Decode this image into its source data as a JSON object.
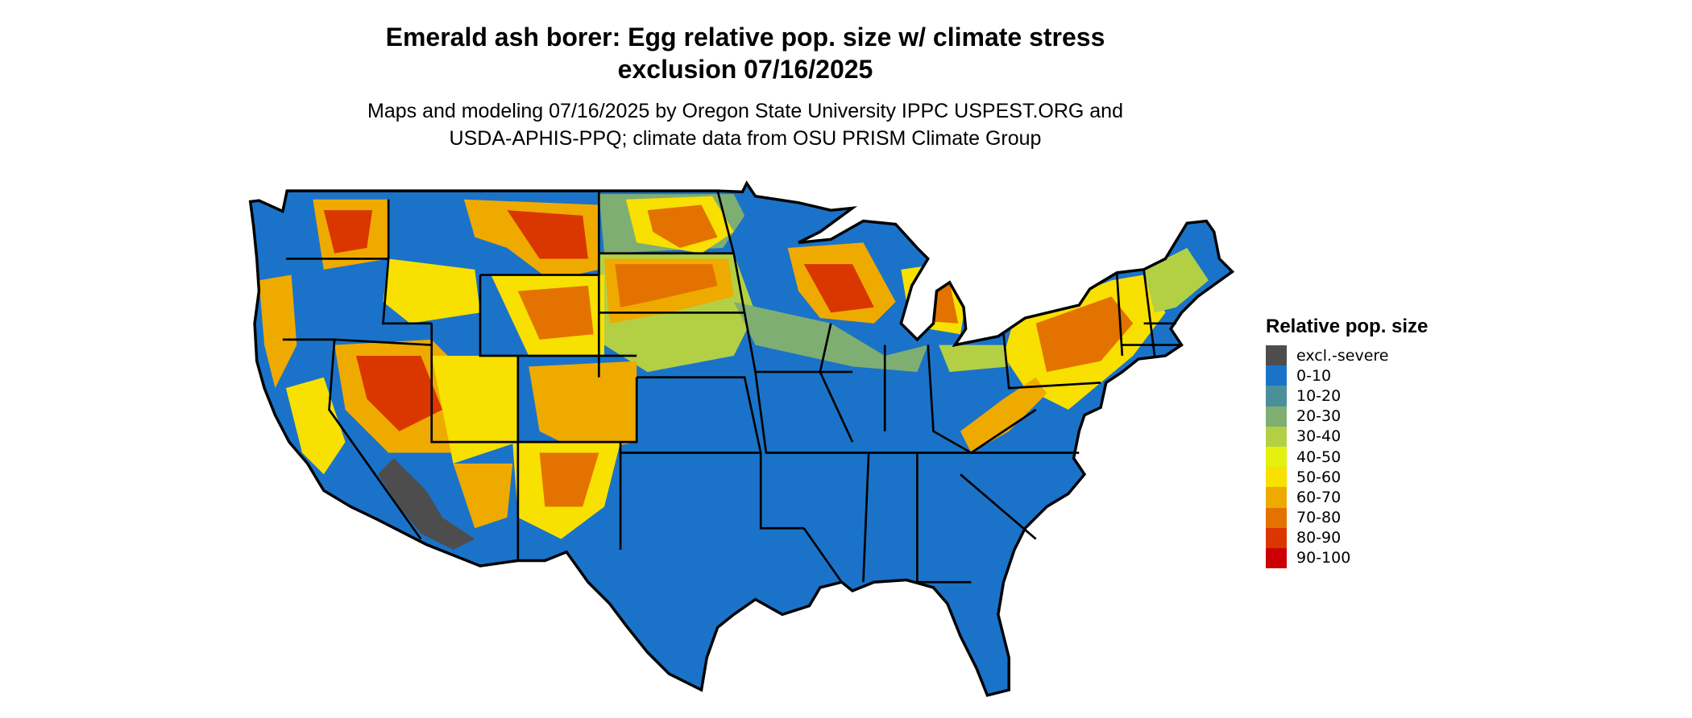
{
  "title": {
    "line1": "Emerald ash borer: Egg relative pop. size w/ climate stress",
    "line2": "exclusion 07/16/2025"
  },
  "subtitle": {
    "line1": "Maps and modeling 07/16/2025 by Oregon State University IPPC USPEST.ORG and",
    "line2": "USDA-APHIS-PPQ; climate data from OSU PRISM Climate Group"
  },
  "map": {
    "region": "Contiguous United States",
    "base_color": "#1a73c9",
    "border_color": "#000000"
  },
  "legend": {
    "title": "Relative pop. size",
    "items": [
      {
        "label": "excl.-severe",
        "color": "#4d4d4d"
      },
      {
        "label": "0-10",
        "color": "#1a73c9"
      },
      {
        "label": "10-20",
        "color": "#4a8f9a"
      },
      {
        "label": "20-30",
        "color": "#7eae72"
      },
      {
        "label": "30-40",
        "color": "#b3d045"
      },
      {
        "label": "40-50",
        "color": "#e4f010"
      },
      {
        "label": "50-60",
        "color": "#f8e000"
      },
      {
        "label": "60-70",
        "color": "#efaa00"
      },
      {
        "label": "70-80",
        "color": "#e47200"
      },
      {
        "label": "80-90",
        "color": "#da3600"
      },
      {
        "label": "90-100",
        "color": "#cc0000"
      }
    ]
  }
}
